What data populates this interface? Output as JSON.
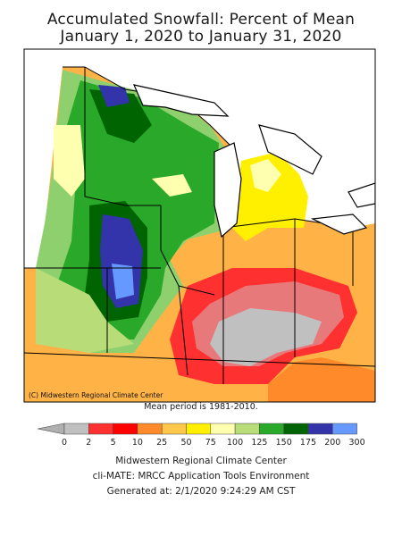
{
  "header": {
    "title": "Accumulated Snowfall: Percent of Mean",
    "subtitle": "January 1, 2020 to January 31, 2020"
  },
  "map": {
    "copyright": "(C) Midwestern Regional Climate Center",
    "mean_period": "Mean period is 1981-2010."
  },
  "legend": {
    "labels": [
      "0",
      "2",
      "5",
      "10",
      "25",
      "50",
      "75",
      "100",
      "125",
      "150",
      "175",
      "200",
      "300"
    ],
    "colors": [
      "#c0c0c0",
      "#e8797a",
      "#ff3030",
      "#ff0000",
      "#ff8a2a",
      "#ffc84a",
      "#fff000",
      "#ffffb0",
      "#b8dc78",
      "#2aa82a",
      "#006400",
      "#3333aa",
      "#6699ff"
    ]
  },
  "footer": {
    "org": "Midwestern Regional Climate Center",
    "tool": "cli-MATE: MRCC Application Tools Environment",
    "generated": "Generated at: 2/1/2020 9:24:29 AM CST"
  }
}
